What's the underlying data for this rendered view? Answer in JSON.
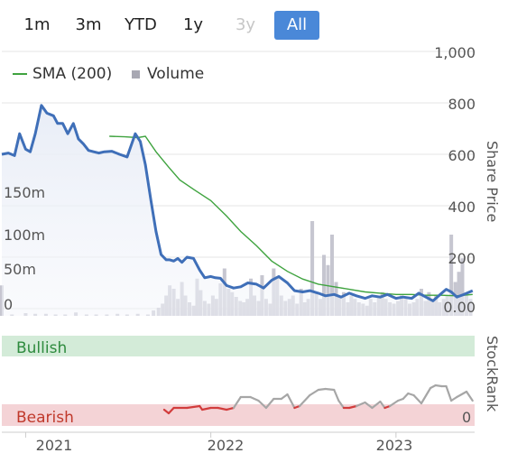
{
  "range_selector": {
    "buttons": [
      {
        "label": "1m",
        "state": "normal"
      },
      {
        "label": "3m",
        "state": "normal"
      },
      {
        "label": "YTD",
        "state": "normal"
      },
      {
        "label": "1y",
        "state": "normal"
      },
      {
        "label": "3y",
        "state": "disabled"
      },
      {
        "label": "All",
        "state": "active"
      }
    ]
  },
  "legend": {
    "sma_label": "SMA (200)",
    "volume_label": "Volume"
  },
  "colors": {
    "price": "#3f6fb8",
    "sma": "#3fa33f",
    "volume": "#c6c6d0",
    "stockrank_neutral": "#a6a6a6",
    "stockrank_low": "#d23c3c",
    "bullish_band": "#d3ebd8",
    "bearish_band": "#f4d3d6",
    "bullish_text": "#2e8b3e",
    "bearish_text": "#c0392b",
    "active_button": "#4a88d8"
  },
  "chart_data": [
    {
      "type": "line",
      "panel": "price",
      "y_axis_title": "Share Price",
      "y_ticks": [
        "0.00",
        "200",
        "400",
        "600",
        "800",
        "1,000"
      ],
      "ylim": [
        0,
        1000
      ],
      "x_ticks": [
        "2021",
        "2022",
        "2023"
      ],
      "xlim": [
        "2020-11-15",
        "2023-06-05"
      ],
      "series": [
        {
          "name": "Share Price",
          "x": [
            "2020-11-15",
            "2020-11-28",
            "2020-12-10",
            "2020-12-20",
            "2021-01-01",
            "2021-01-10",
            "2021-01-20",
            "2021-02-01",
            "2021-02-12",
            "2021-02-25",
            "2021-03-05",
            "2021-03-15",
            "2021-03-25",
            "2021-04-05",
            "2021-04-15",
            "2021-04-25",
            "2021-05-05",
            "2021-05-15",
            "2021-05-25",
            "2021-06-05",
            "2021-06-20",
            "2021-07-05",
            "2021-07-20",
            "2021-08-05",
            "2021-08-15",
            "2021-08-25",
            "2021-09-05",
            "2021-09-15",
            "2021-09-25",
            "2021-10-05",
            "2021-10-12",
            "2021-10-20",
            "2021-10-28",
            "2021-11-05",
            "2021-11-15",
            "2021-11-28",
            "2021-12-10",
            "2021-12-20",
            "2022-01-01",
            "2022-01-10",
            "2022-01-20",
            "2022-02-01",
            "2022-02-15",
            "2022-03-01",
            "2022-03-15",
            "2022-04-01",
            "2022-04-15",
            "2022-05-01",
            "2022-05-15",
            "2022-06-01",
            "2022-06-15",
            "2022-07-01",
            "2022-07-15",
            "2022-08-01",
            "2022-08-15",
            "2022-09-01",
            "2022-09-15",
            "2022-10-01",
            "2022-10-15",
            "2022-11-01",
            "2022-11-15",
            "2022-12-01",
            "2022-12-15",
            "2023-01-01",
            "2023-01-15",
            "2023-02-01",
            "2023-02-15",
            "2023-03-01",
            "2023-03-15",
            "2023-04-01",
            "2023-04-10",
            "2023-04-20",
            "2023-05-01",
            "2023-05-15",
            "2023-06-01"
          ],
          "values": [
            600,
            605,
            595,
            680,
            620,
            610,
            680,
            790,
            760,
            750,
            720,
            720,
            680,
            720,
            660,
            640,
            615,
            610,
            605,
            610,
            612,
            600,
            590,
            680,
            650,
            560,
            420,
            300,
            210,
            190,
            190,
            185,
            195,
            180,
            200,
            195,
            150,
            120,
            125,
            120,
            118,
            90,
            80,
            85,
            100,
            95,
            80,
            110,
            125,
            100,
            70,
            65,
            70,
            60,
            50,
            55,
            45,
            60,
            50,
            40,
            50,
            45,
            55,
            40,
            45,
            40,
            60,
            45,
            30,
            60,
            75,
            65,
            45,
            55,
            70
          ]
        },
        {
          "name": "SMA (200)",
          "x": [
            "2021-06-15",
            "2021-07-15",
            "2021-08-10",
            "2021-08-25",
            "2021-09-15",
            "2021-10-10",
            "2021-11-01",
            "2021-12-01",
            "2022-01-01",
            "2022-02-01",
            "2022-03-01",
            "2022-04-01",
            "2022-05-01",
            "2022-06-01",
            "2022-07-01",
            "2022-08-01",
            "2022-09-01",
            "2022-10-01",
            "2022-11-01",
            "2022-12-01",
            "2023-01-01",
            "2023-02-01",
            "2023-03-01",
            "2023-04-01",
            "2023-05-01",
            "2023-06-01"
          ],
          "values": [
            670,
            668,
            665,
            670,
            610,
            550,
            500,
            460,
            420,
            360,
            300,
            245,
            185,
            145,
            115,
            95,
            85,
            75,
            65,
            60,
            55,
            55,
            52,
            52,
            50,
            55
          ]
        }
      ]
    },
    {
      "type": "bar",
      "panel": "volume",
      "series_name": "Volume",
      "y_ticks": [
        "0",
        "50m",
        "100m",
        "150m"
      ],
      "ylim": [
        0,
        200000000
      ],
      "x": [
        "2020-11-15",
        "2020-12-05",
        "2021-01-01",
        "2021-01-20",
        "2021-02-10",
        "2021-03-01",
        "2021-03-20",
        "2021-04-10",
        "2021-05-01",
        "2021-05-20",
        "2021-06-10",
        "2021-07-01",
        "2021-07-20",
        "2021-08-10",
        "2021-08-30",
        "2021-09-10",
        "2021-09-20",
        "2021-09-28",
        "2021-10-05",
        "2021-10-12",
        "2021-10-20",
        "2021-10-28",
        "2021-11-05",
        "2021-11-12",
        "2021-11-20",
        "2021-11-28",
        "2021-12-05",
        "2021-12-12",
        "2021-12-20",
        "2021-12-28",
        "2022-01-05",
        "2022-01-12",
        "2022-01-20",
        "2022-01-28",
        "2022-02-05",
        "2022-02-12",
        "2022-02-20",
        "2022-02-28",
        "2022-03-07",
        "2022-03-14",
        "2022-03-21",
        "2022-03-28",
        "2022-04-05",
        "2022-04-12",
        "2022-04-20",
        "2022-04-28",
        "2022-05-05",
        "2022-05-12",
        "2022-05-20",
        "2022-05-28",
        "2022-06-05",
        "2022-06-12",
        "2022-06-20",
        "2022-06-28",
        "2022-07-05",
        "2022-07-12",
        "2022-07-20",
        "2022-07-28",
        "2022-08-05",
        "2022-08-12",
        "2022-08-20",
        "2022-08-28",
        "2022-09-05",
        "2022-09-12",
        "2022-09-20",
        "2022-09-28",
        "2022-10-05",
        "2022-10-12",
        "2022-10-20",
        "2022-10-28",
        "2022-11-05",
        "2022-11-12",
        "2022-11-20",
        "2022-11-28",
        "2022-12-05",
        "2022-12-12",
        "2022-12-20",
        "2022-12-28",
        "2023-01-05",
        "2023-01-12",
        "2023-01-20",
        "2023-01-28",
        "2023-02-05",
        "2023-02-12",
        "2023-02-20",
        "2023-02-28",
        "2023-03-07",
        "2023-03-14",
        "2023-03-21",
        "2023-03-28",
        "2023-04-05",
        "2023-04-12",
        "2023-04-20",
        "2023-04-28",
        "2023-05-05",
        "2023-05-12",
        "2023-05-20",
        "2023-05-28"
      ],
      "values": [
        45000000,
        2000000,
        4000000,
        3000000,
        3000000,
        2000000,
        2000000,
        5000000,
        2000000,
        2000000,
        2000000,
        3000000,
        2000000,
        3000000,
        2000000,
        8000000,
        12000000,
        18000000,
        30000000,
        45000000,
        40000000,
        25000000,
        50000000,
        30000000,
        20000000,
        15000000,
        55000000,
        38000000,
        22000000,
        18000000,
        30000000,
        25000000,
        48000000,
        70000000,
        40000000,
        35000000,
        28000000,
        22000000,
        20000000,
        25000000,
        55000000,
        30000000,
        22000000,
        60000000,
        25000000,
        18000000,
        70000000,
        55000000,
        30000000,
        22000000,
        25000000,
        30000000,
        18000000,
        40000000,
        20000000,
        25000000,
        140000000,
        35000000,
        25000000,
        90000000,
        75000000,
        120000000,
        50000000,
        30000000,
        35000000,
        20000000,
        30000000,
        25000000,
        20000000,
        18000000,
        15000000,
        25000000,
        20000000,
        30000000,
        35000000,
        25000000,
        20000000,
        18000000,
        22000000,
        30000000,
        25000000,
        18000000,
        20000000,
        25000000,
        40000000,
        22000000,
        35000000,
        25000000,
        30000000,
        20000000,
        25000000,
        30000000,
        120000000,
        50000000,
        65000000,
        85000000,
        30000000,
        25000000
      ]
    },
    {
      "type": "line",
      "panel": "stockrank",
      "y_axis_title": "StockRank",
      "y_ticks": [
        "0"
      ],
      "ylim": [
        0,
        100
      ],
      "bands": [
        {
          "label": "Bullish",
          "range": [
            70,
            100
          ]
        },
        {
          "label": "Bearish",
          "range": [
            0,
            15
          ]
        }
      ],
      "series": [
        {
          "name": "StockRank",
          "x": [
            "2021-10-01",
            "2021-10-10",
            "2021-10-20",
            "2021-11-15",
            "2021-12-10",
            "2021-12-15",
            "2022-01-01",
            "2022-01-15",
            "2022-02-01",
            "2022-02-15",
            "2022-03-01",
            "2022-03-20",
            "2022-04-05",
            "2022-04-20",
            "2022-05-05",
            "2022-05-20",
            "2022-06-01",
            "2022-06-15",
            "2022-06-25",
            "2022-07-15",
            "2022-08-01",
            "2022-08-15",
            "2022-09-01",
            "2022-09-10",
            "2022-09-20",
            "2022-10-01",
            "2022-10-15",
            "2022-11-01",
            "2022-11-15",
            "2022-12-01",
            "2022-12-10",
            "2022-12-20",
            "2023-01-05",
            "2023-01-15",
            "2023-01-25",
            "2023-02-05",
            "2023-02-20",
            "2023-03-10",
            "2023-03-20",
            "2023-04-01",
            "2023-04-10",
            "2023-04-20",
            "2023-05-01",
            "2023-05-20",
            "2023-06-01"
          ],
          "values": [
            18,
            14,
            20,
            20,
            22,
            18,
            20,
            20,
            18,
            20,
            32,
            32,
            28,
            20,
            30,
            30,
            35,
            20,
            22,
            34,
            40,
            41,
            40,
            28,
            20,
            20,
            22,
            26,
            20,
            27,
            20,
            22,
            28,
            30,
            36,
            34,
            25,
            42,
            45,
            44,
            44,
            28,
            32,
            38,
            28
          ],
          "threshold_low": 22
        }
      ]
    }
  ]
}
